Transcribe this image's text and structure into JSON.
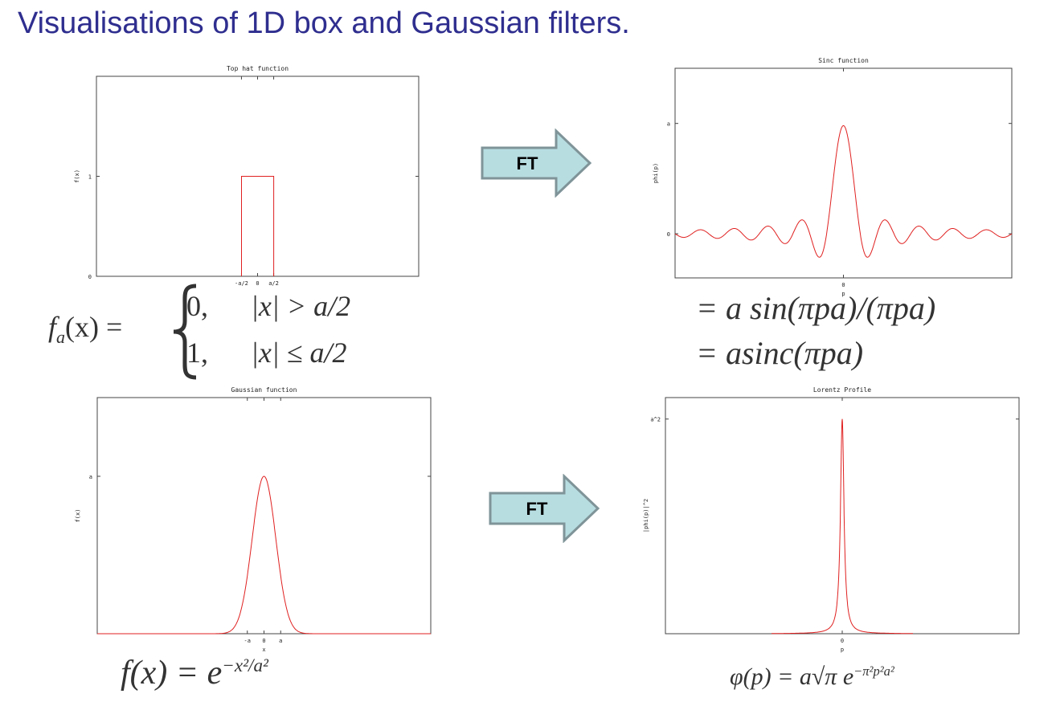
{
  "slide": {
    "title": "Visualisations of 1D box and Gaussian filters."
  },
  "arrows": [
    {
      "label": "FT"
    },
    {
      "label": "FT"
    }
  ],
  "formulas": {
    "top_hat_lhs": "f",
    "top_hat_sub": "a",
    "top_hat_arg": "(x) =",
    "top_hat_case1_val": "0,",
    "top_hat_case1_cond": "|x| > a/2",
    "top_hat_case2_val": "1,",
    "top_hat_case2_cond": "|x| ≤ a/2",
    "sinc_line1": "= a sin(πpa)/(πpa)",
    "sinc_line2": "= asinc(πpa)",
    "gauss_lhs": "f(x) = e",
    "gauss_exp": "−x²/a²",
    "lorentz_lhs": "φ(p) = a√π e",
    "lorentz_exp": "−π²p²a²"
  },
  "chart_data": [
    {
      "type": "line",
      "title": "Top hat function",
      "xlabel": "",
      "ylabel": "f(x)",
      "xlim": [
        -10,
        10
      ],
      "ylim": [
        0,
        2
      ],
      "x_ticks": [
        "-a/2",
        "0",
        "a/2"
      ],
      "x_tick_values": [
        -1,
        0,
        1
      ],
      "y_ticks": [
        "0",
        "1"
      ],
      "y_tick_values": [
        0,
        1
      ],
      "series": [
        {
          "x": [
            -1,
            -1,
            1,
            1
          ],
          "y": [
            0,
            1,
            1,
            0
          ],
          "color": "#e02020"
        }
      ],
      "grid": false
    },
    {
      "type": "line",
      "title": "Sinc function",
      "xlabel": "p",
      "ylabel": "phi(p)",
      "xlim": [
        -10,
        10
      ],
      "ylim": [
        -0.4,
        1.5
      ],
      "x_ticks": [
        "0"
      ],
      "x_tick_values": [
        0
      ],
      "y_ticks": [
        "0",
        "a"
      ],
      "y_tick_values": [
        0,
        1
      ],
      "series": [
        {
          "function": "a*sinc(pi*p*a)",
          "a": 0.98,
          "color": "#e02020"
        }
      ],
      "grid": false
    },
    {
      "type": "line",
      "title": "Gaussian function",
      "xlabel": "x",
      "ylabel": "f(x)",
      "xlim": [
        -10,
        10
      ],
      "ylim": [
        0,
        1.5
      ],
      "x_ticks": [
        "-a",
        "0",
        "a"
      ],
      "x_tick_values": [
        -1,
        0,
        1
      ],
      "y_ticks": [
        "a"
      ],
      "y_tick_values": [
        1
      ],
      "series": [
        {
          "function": "exp(-x^2/a^2)",
          "a": 1,
          "color": "#e02020"
        }
      ],
      "grid": false
    },
    {
      "type": "line",
      "title": "Lorentz Profile",
      "xlabel": "p",
      "ylabel": "|phi(p)|^2",
      "xlim": [
        -10,
        10
      ],
      "ylim": [
        0,
        1.1
      ],
      "x_ticks": [
        "0"
      ],
      "x_tick_values": [
        0
      ],
      "y_ticks": [
        "a^2"
      ],
      "y_tick_values": [
        1
      ],
      "series": [
        {
          "function": "1/(1+(p/w)^2)",
          "w": 0.12,
          "range": [
            -4,
            4
          ],
          "color": "#e02020"
        }
      ],
      "grid": false
    }
  ]
}
